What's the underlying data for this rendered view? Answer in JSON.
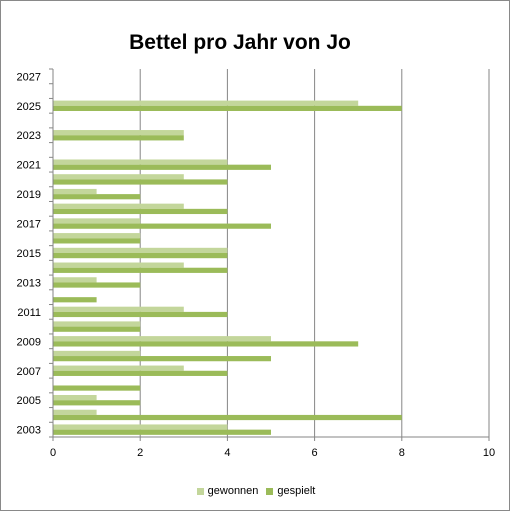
{
  "chart_data": {
    "type": "bar",
    "orientation": "horizontal",
    "title": "Bettel  pro Jahr von Jo",
    "xlabel": "",
    "ylabel": "",
    "xlim": [
      0,
      10
    ],
    "x_ticks": [
      0,
      2,
      4,
      6,
      8,
      10
    ],
    "y_tick_labels": [
      "2003",
      "2005",
      "2007",
      "2009",
      "2011",
      "2013",
      "2015",
      "2017",
      "2019",
      "2021",
      "2023",
      "2025",
      "2027"
    ],
    "categories": [
      "2003",
      "2004",
      "2005",
      "2006",
      "2007",
      "2008",
      "2009",
      "2010",
      "2011",
      "2012",
      "2013",
      "2014",
      "2015",
      "2016",
      "2017",
      "2018",
      "2019",
      "2020",
      "2021",
      "2022",
      "2023",
      "2024",
      "2025",
      "2026",
      "2027"
    ],
    "series": [
      {
        "name": "gewonnen",
        "color": "#c3d69b",
        "values": [
          4,
          1,
          1,
          0,
          3,
          2,
          5,
          2,
          3,
          0,
          1,
          3,
          4,
          2,
          2,
          3,
          1,
          3,
          4,
          0,
          3,
          0,
          7,
          0,
          0
        ]
      },
      {
        "name": "gespielt",
        "color": "#9bbb59",
        "values": [
          5,
          8,
          2,
          2,
          4,
          5,
          7,
          2,
          4,
          1,
          2,
          4,
          4,
          2,
          5,
          4,
          2,
          4,
          5,
          0,
          3,
          0,
          8,
          0,
          0
        ]
      }
    ],
    "grid": true,
    "legend_position": "bottom"
  }
}
